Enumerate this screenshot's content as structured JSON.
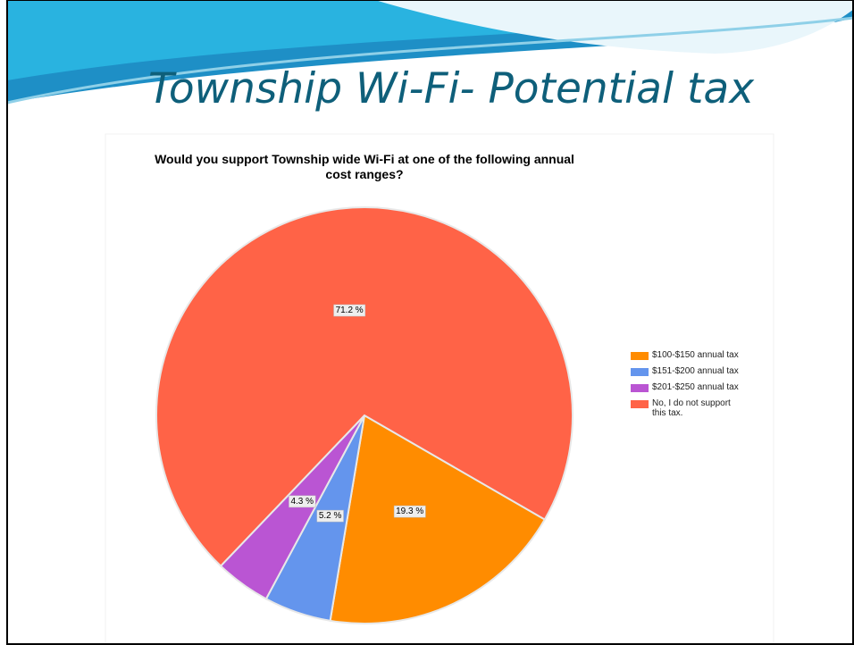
{
  "slide_title": "Township Wi-Fi- Potential tax",
  "chart_data": {
    "type": "pie",
    "title": "Would you support Township wide Wi-Fi at one of the following annual cost ranges?",
    "categories": [
      "$100-$150 annual tax",
      "$151-$200 annual tax",
      "$201-$250 annual tax",
      "No, I do not support this tax."
    ],
    "values": [
      19.3,
      5.2,
      4.3,
      71.2
    ],
    "value_labels": [
      "19.3 %",
      "5.2 %",
      "4.3 %",
      "71.2 %"
    ],
    "colors": [
      "#ff8c00",
      "#6495ed",
      "#ba55d3",
      "#ff6347"
    ]
  }
}
